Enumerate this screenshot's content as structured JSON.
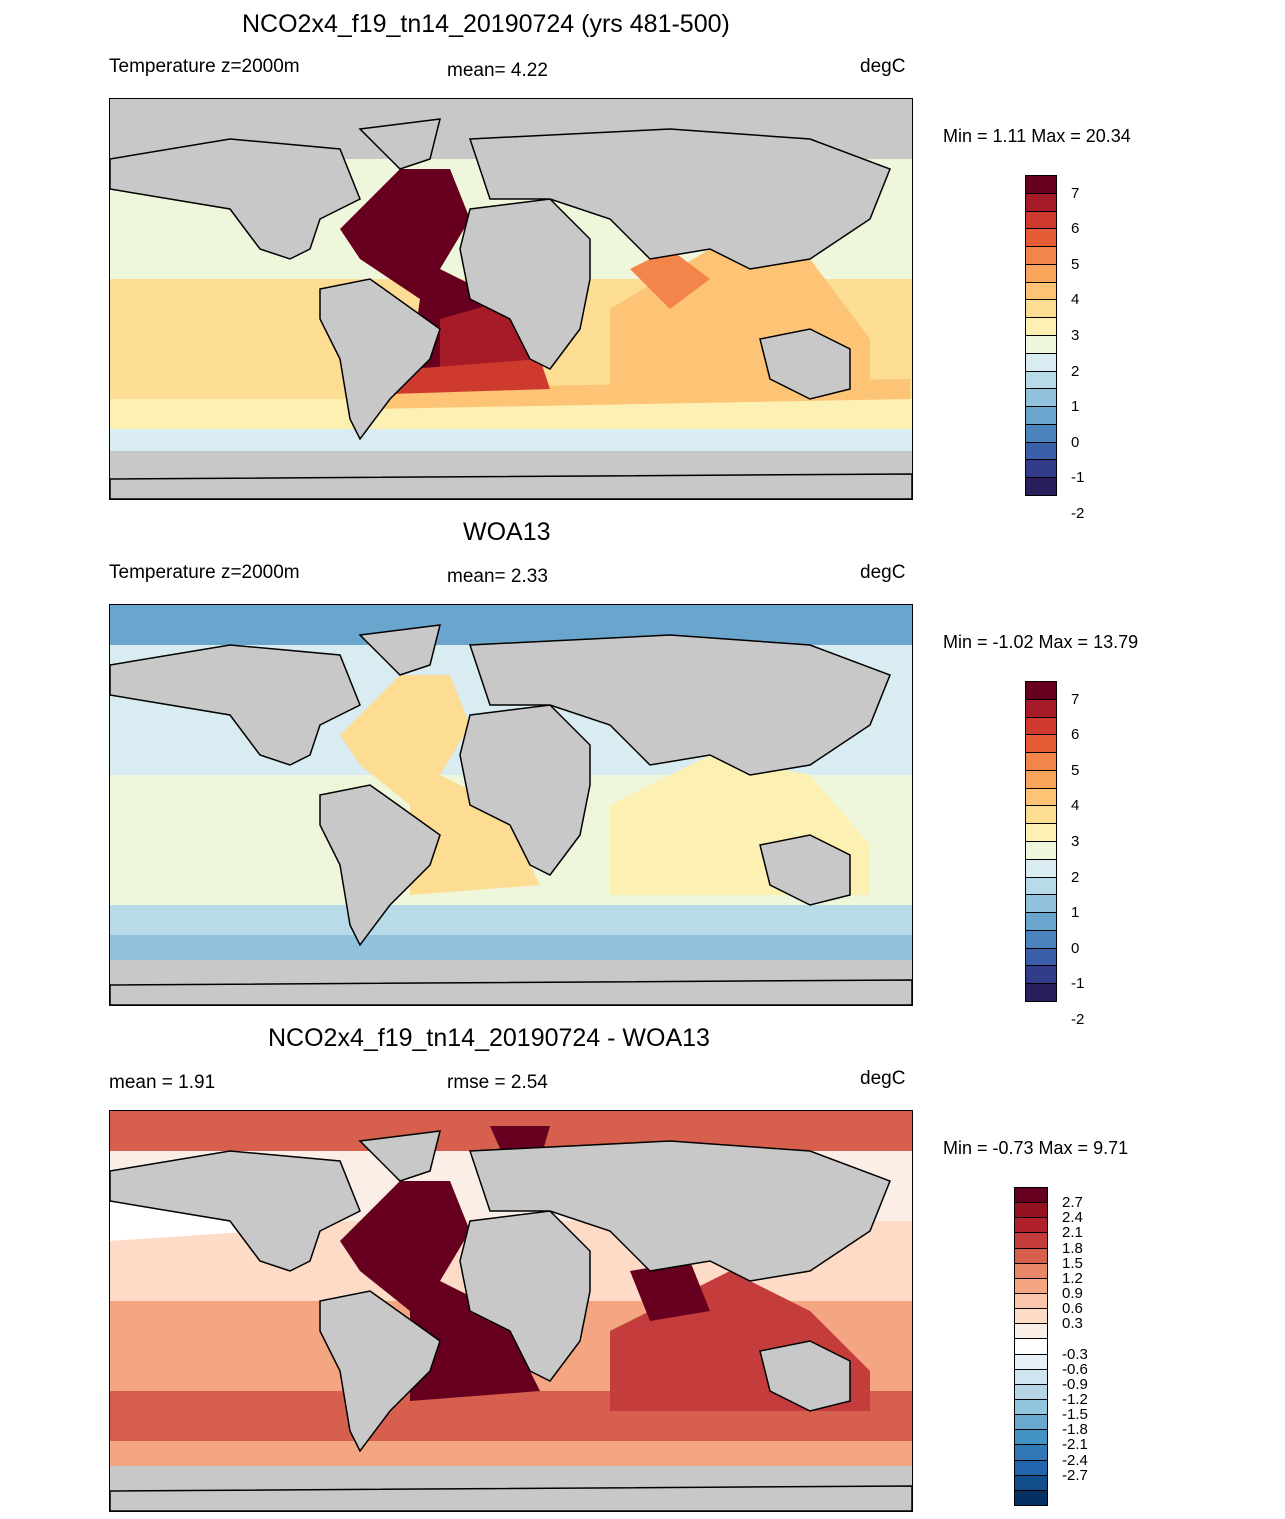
{
  "panels": [
    {
      "title": "NCO2x4_f19_tn14_20190724 (yrs 481-500)",
      "left_label": "Temperature z=2000m",
      "center_label": "mean=   4.22",
      "right_label": "degC",
      "minmax": "Min =   1.11 Max =  20.34",
      "colorbar": {
        "colors": [
          "#67001f",
          "#a51c28",
          "#cf3a2f",
          "#e65c37",
          "#f3844a",
          "#f9a65c",
          "#fcc474",
          "#fddc93",
          "#fcf0b2",
          "#eef7dc",
          "#d8ecf2",
          "#b8dbea",
          "#92c3de",
          "#6aa5cd",
          "#4b84bc",
          "#3a5ea8",
          "#323c8a",
          "#2a1f5c"
        ],
        "labels": [
          "7",
          "6",
          "5",
          "4",
          "3",
          "2",
          "1",
          "0",
          "-1",
          "-2"
        ]
      }
    },
    {
      "title": "WOA13",
      "left_label": "Temperature z=2000m",
      "center_label": "mean=   2.33",
      "right_label": "degC",
      "minmax": "Min =  -1.02 Max =  13.79",
      "colorbar": {
        "colors": [
          "#67001f",
          "#a51c28",
          "#cf3a2f",
          "#e65c37",
          "#f3844a",
          "#f9a65c",
          "#fcc474",
          "#fddc93",
          "#fcf0b2",
          "#eef7dc",
          "#d8ecf2",
          "#b8dbea",
          "#92c3de",
          "#6aa5cd",
          "#4b84bc",
          "#3a5ea8",
          "#323c8a",
          "#2a1f5c"
        ],
        "labels": [
          "7",
          "6",
          "5",
          "4",
          "3",
          "2",
          "1",
          "0",
          "-1",
          "-2"
        ]
      }
    },
    {
      "title": "NCO2x4_f19_tn14_20190724 - WOA13",
      "left_label": "mean =   1.91",
      "center_label": "rmse =   2.54",
      "right_label": "degC",
      "minmax": "Min =  -0.73 Max =   9.71",
      "colorbar": {
        "colors": [
          "#67001f",
          "#94111f",
          "#b2202c",
          "#c43c3c",
          "#d6604d",
          "#e8866a",
          "#f4a582",
          "#f9c6ab",
          "#fddbc7",
          "#fbeee6",
          "#ffffff",
          "#e6f0f6",
          "#d1e5f0",
          "#b6d6e8",
          "#92c5de",
          "#6aa9cf",
          "#4393c3",
          "#3079b6",
          "#2166ac",
          "#124e8c",
          "#053061"
        ],
        "labels": [
          "2.7",
          "2.4",
          "2.1",
          "1.8",
          "1.5",
          "1.2",
          "0.9",
          "0.6",
          "0.3",
          "-0.3",
          "-0.6",
          "-0.9",
          "-1.2",
          "-1.5",
          "-1.8",
          "-2.1",
          "-2.4",
          "-2.7"
        ]
      }
    }
  ]
}
